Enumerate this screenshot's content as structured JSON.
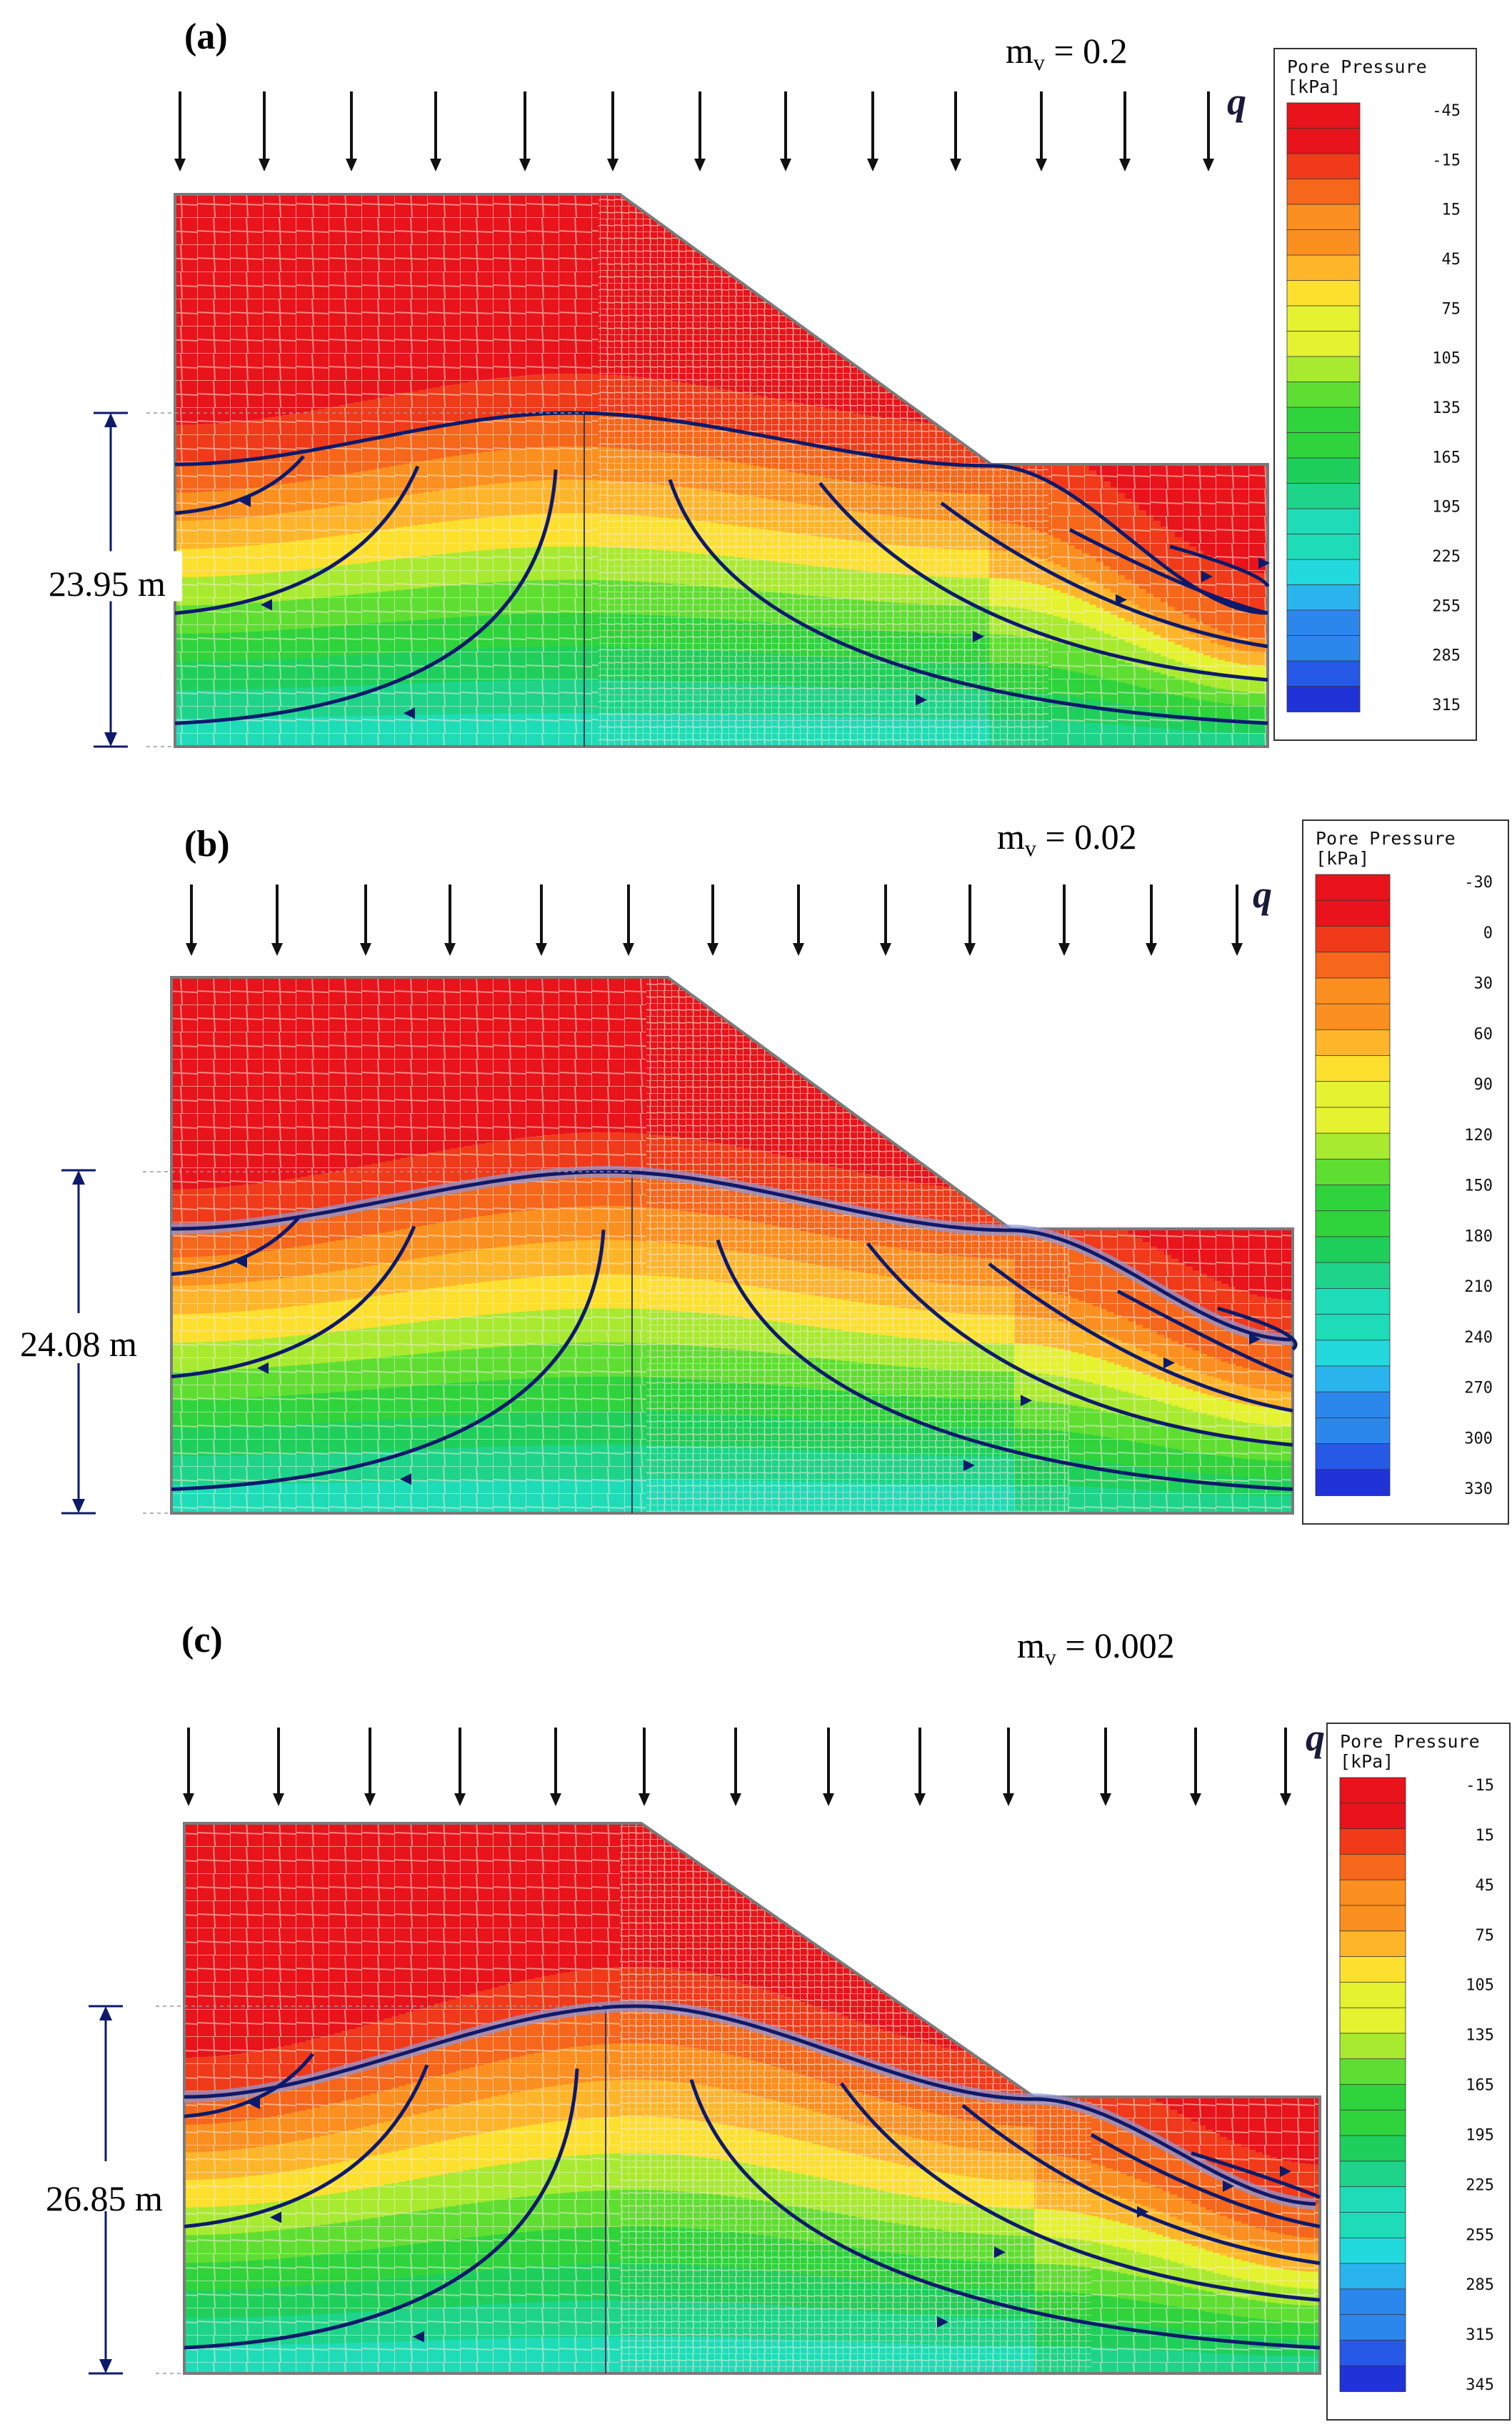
{
  "figure": {
    "load_symbol": "q",
    "legend_title": "Pore Pressure",
    "legend_unit": "[kPa]",
    "colors": {
      "arrow": "#111111",
      "flowline": "#0d1a6b",
      "phreatic_halo": "#8f98d8",
      "mesh_line": "#f3ead8",
      "boundary": "#7a7a7a",
      "ramp": [
        "#e8131b",
        "#f03a1a",
        "#f6661b",
        "#fb8f1f",
        "#ffb52a",
        "#fde02e",
        "#e4f230",
        "#a8ea30",
        "#5fde32",
        "#2fd33c",
        "#1fcf5c",
        "#1dd48a",
        "#1fdcb8",
        "#22d9dd",
        "#2ab4ee",
        "#2c87ec",
        "#2659e6",
        "#1f33d9"
      ]
    },
    "panels": [
      {
        "label": "(a)",
        "mv_text": "m",
        "mv_sub": "v",
        "mv_value": " = 0.2",
        "dimension": "23.95 m",
        "legend_ticks": [
          "-45",
          "-15",
          "15",
          "45",
          "75",
          "105",
          "135",
          "165",
          "195",
          "225",
          "255",
          "285",
          "315"
        ]
      },
      {
        "label": "(b)",
        "mv_text": "m",
        "mv_sub": "v",
        "mv_value": " = 0.02",
        "dimension": "24.08 m",
        "legend_ticks": [
          "-30",
          "0",
          "30",
          "60",
          "90",
          "120",
          "150",
          "180",
          "210",
          "240",
          "270",
          "300",
          "330"
        ]
      },
      {
        "label": "(c)",
        "mv_text": "m",
        "mv_sub": "v",
        "mv_value": " = 0.002",
        "dimension": "26.85 m",
        "legend_ticks": [
          "-15",
          "15",
          "45",
          "75",
          "105",
          "135",
          "165",
          "195",
          "225",
          "255",
          "285",
          "315",
          "345"
        ]
      }
    ]
  }
}
